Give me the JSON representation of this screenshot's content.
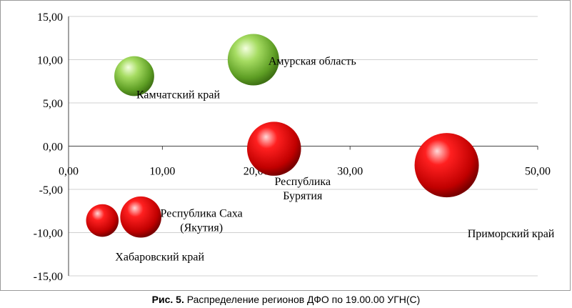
{
  "caption": {
    "prefix": "Рис. 5.",
    "text": "Распределение регионов ДФО по 19.00.00 УГН(С)"
  },
  "colors": {
    "green": "#7cc43a",
    "red": "#e00000",
    "grid": "#d0d0d0",
    "axis": "#444444"
  },
  "chart_data": {
    "type": "bubble",
    "title": "",
    "xlabel": "",
    "ylabel": "",
    "xlim": [
      0,
      50
    ],
    "ylim": [
      -15,
      15
    ],
    "x_ticks": [
      "0,00",
      "10,00",
      "20,00",
      "30,00",
      "40,00",
      "50,00"
    ],
    "y_ticks": [
      "15,00",
      "10,00",
      "5,00",
      "0,00",
      "-5,00",
      "-10,00",
      "-15,00"
    ],
    "grid": "horizontal",
    "legend": "none",
    "points": [
      {
        "label": "Амурская область",
        "x": 19.7,
        "y": 10.0,
        "size": 2.5,
        "color": "green"
      },
      {
        "label": "Камчатский край",
        "x": 7.0,
        "y": 8.1,
        "size": 1.5,
        "color": "green"
      },
      {
        "label": "Республика Бурятия",
        "label_lines": [
          "Республика",
          "Бурятия"
        ],
        "x": 21.9,
        "y": -0.3,
        "size": 2.75,
        "color": "red"
      },
      {
        "label": "Приморский край",
        "x": 40.3,
        "y": -2.2,
        "size": 3.9,
        "color": "red"
      },
      {
        "label": "Республика Саха (Якутия)",
        "label_lines": [
          "Республика Саха",
          "(Якутия)"
        ],
        "x": 7.7,
        "y": -8.2,
        "size": 1.6,
        "color": "red"
      },
      {
        "label": "Хабаровский край",
        "x": 3.6,
        "y": -8.6,
        "size": 1.0,
        "color": "red"
      }
    ]
  }
}
